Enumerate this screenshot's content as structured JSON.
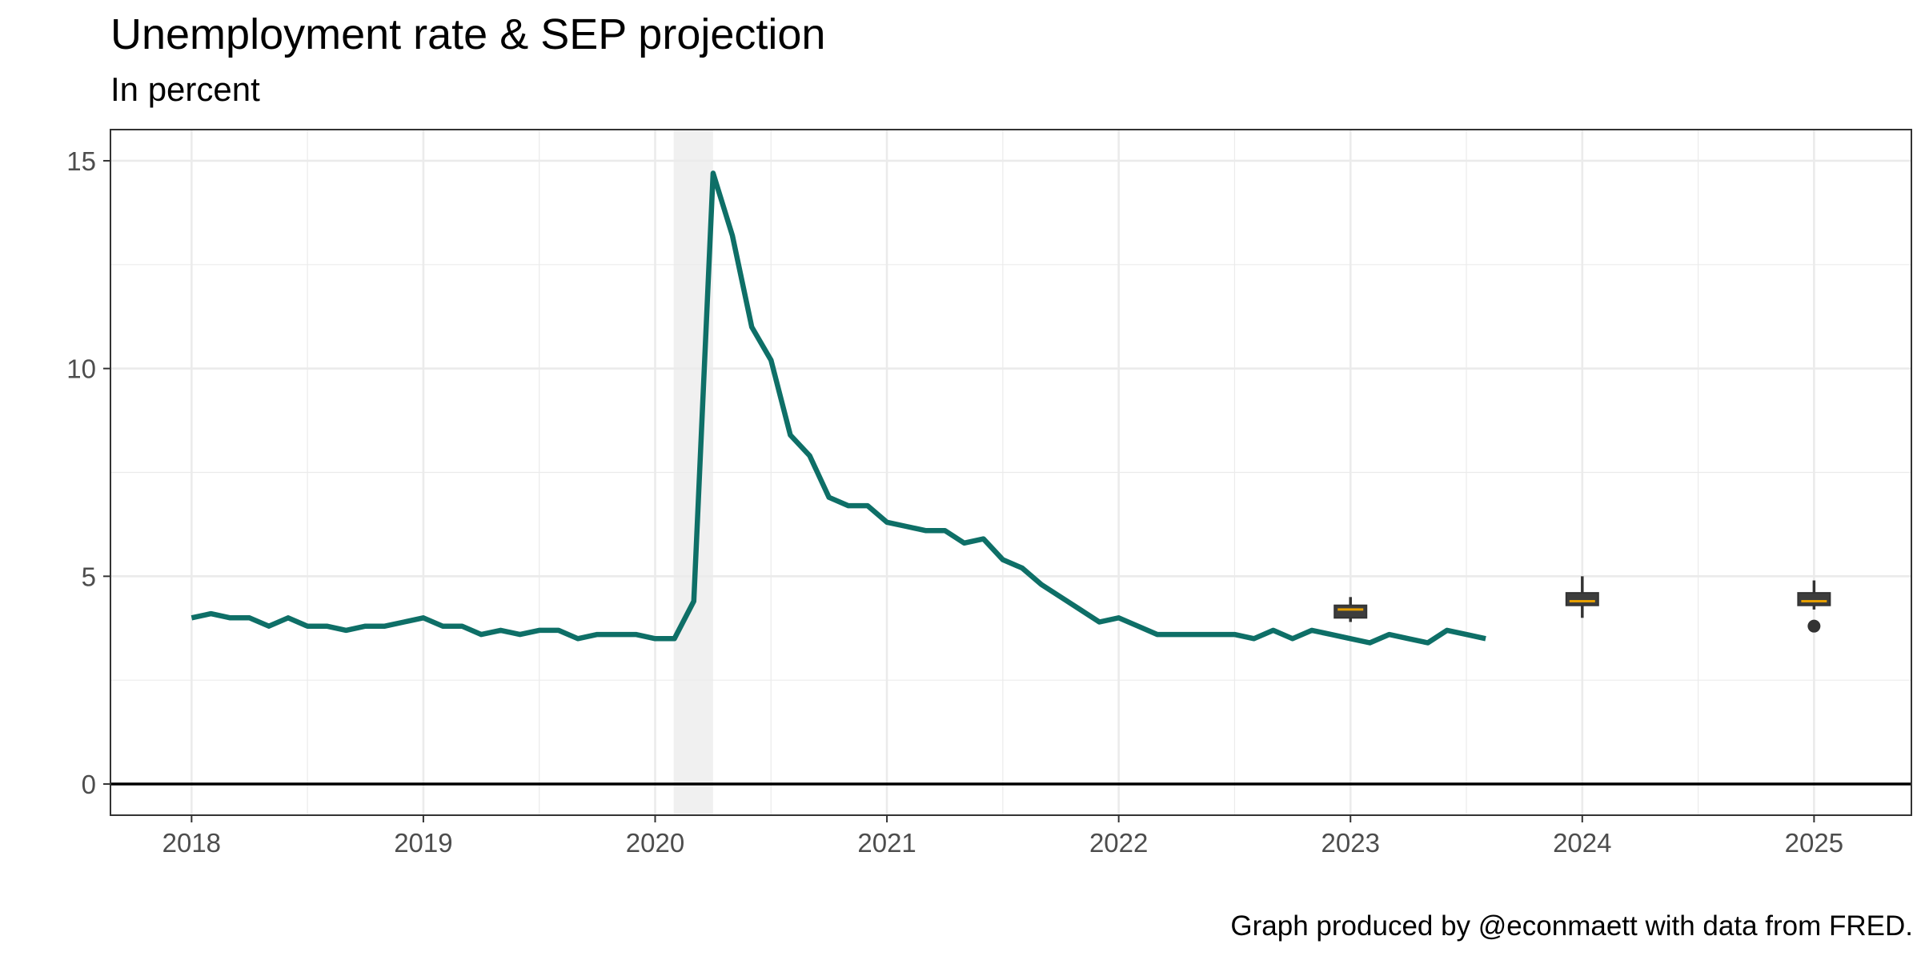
{
  "chart_data": {
    "type": "line",
    "title": "Unemployment rate & SEP projection",
    "subtitle": "In percent",
    "caption": "Graph produced by @econmaett with data from FRED.",
    "xlabel": "",
    "ylabel": "",
    "xlim": [
      2017.65,
      2025.42
    ],
    "ylim": [
      -0.75,
      15.75
    ],
    "x_ticks": [
      2018,
      2019,
      2020,
      2021,
      2022,
      2023,
      2024,
      2025
    ],
    "x_tick_labels": [
      "2018",
      "2019",
      "2020",
      "2021",
      "2022",
      "2023",
      "2024",
      "2025"
    ],
    "y_ticks": [
      0,
      5,
      10,
      15
    ],
    "y_tick_labels": [
      "0",
      "5",
      "10",
      "15"
    ],
    "grid": true,
    "zero_line": true,
    "recession_shading": {
      "start": 2020.08,
      "end": 2020.25,
      "color": "#d9d9d9"
    },
    "series": [
      {
        "color": "#0e6f67",
        "start": 2018,
        "step_months": 1,
        "values": [
          4.0,
          4.1,
          4.0,
          4.0,
          3.8,
          4.0,
          3.8,
          3.8,
          3.7,
          3.8,
          3.8,
          3.9,
          4.0,
          3.8,
          3.8,
          3.6,
          3.7,
          3.6,
          3.7,
          3.7,
          3.5,
          3.6,
          3.6,
          3.6,
          3.5,
          3.5,
          4.4,
          14.7,
          13.2,
          11.0,
          10.2,
          8.4,
          7.9,
          6.9,
          6.7,
          6.7,
          6.3,
          6.2,
          6.1,
          6.1,
          5.8,
          5.9,
          5.4,
          5.2,
          4.8,
          4.5,
          4.2,
          3.9,
          4.0,
          3.8,
          3.6,
          3.6,
          3.6,
          3.6,
          3.6,
          3.5,
          3.7,
          3.5,
          3.7,
          3.6,
          3.5,
          3.4,
          3.6,
          3.5,
          3.4,
          3.7,
          3.6,
          3.5
        ]
      }
    ],
    "projections": [
      {
        "x": 2023,
        "whisker_low": 3.9,
        "q1": 4.0,
        "median": 4.2,
        "q3": 4.3,
        "whisker_high": 4.5,
        "outliers": []
      },
      {
        "x": 2024,
        "whisker_low": 4.0,
        "q1": 4.3,
        "median": 4.4,
        "q3": 4.6,
        "whisker_high": 5.0,
        "outliers": []
      },
      {
        "x": 2025,
        "whisker_low": 4.2,
        "q1": 4.3,
        "median": 4.4,
        "q3": 4.6,
        "whisker_high": 4.9,
        "outliers": [
          3.8
        ]
      }
    ],
    "projection_style": {
      "box_fill": "#3d3d3d",
      "median_color": "#e69f00",
      "outlier_color": "#333333"
    }
  }
}
